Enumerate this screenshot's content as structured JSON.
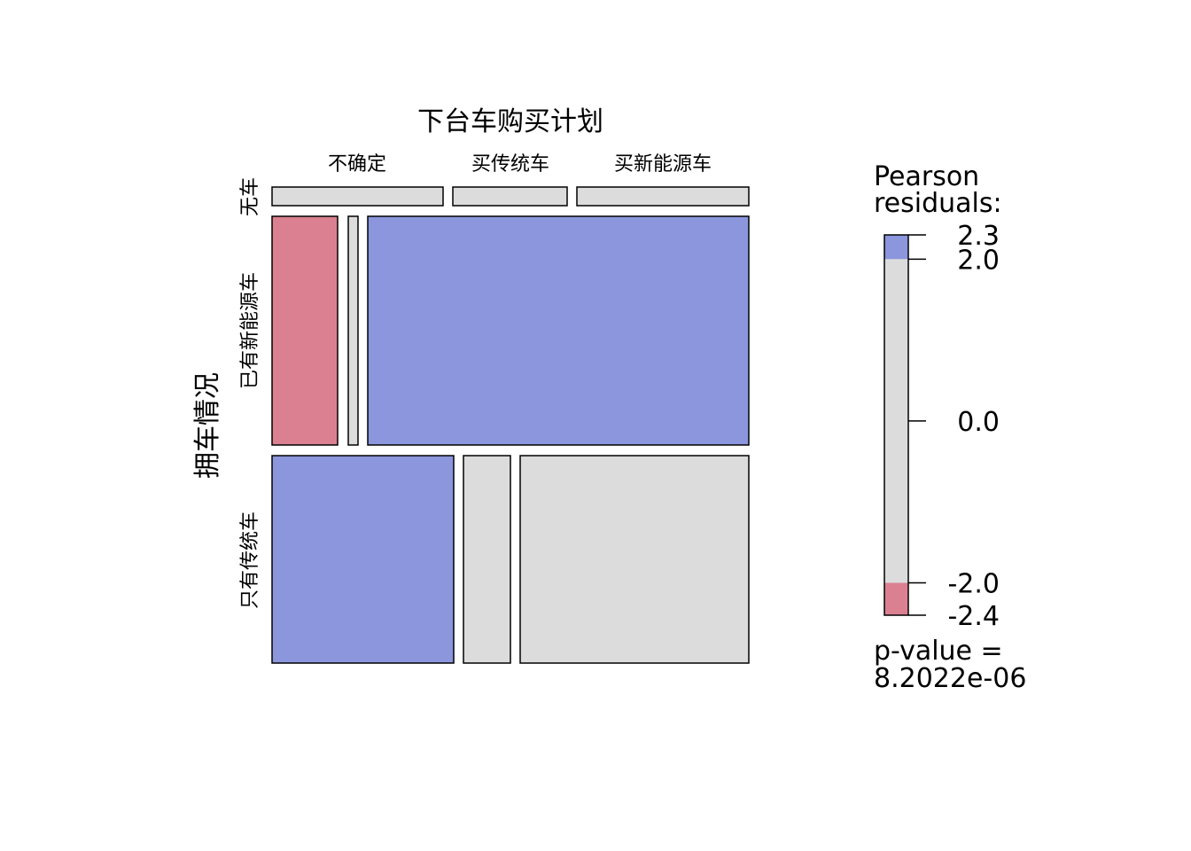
{
  "chart_data": {
    "type": "mosaic",
    "xlabel": "下台车购买计划",
    "ylabel": "拥车情况",
    "columns": [
      "不确定",
      "买传统车",
      "买新能源车"
    ],
    "rows": [
      "无车",
      "已有新能源车",
      "只有传统车"
    ],
    "row_proportions": [
      0.04,
      0.48,
      0.48
    ],
    "cells": [
      {
        "row": "无车",
        "proportions": [
          0.36,
          0.24,
          0.4
        ],
        "shade": "neutral"
      },
      {
        "row": "已有新能源车",
        "proportions": [
          0.14,
          0.02,
          0.84
        ],
        "shade": [
          "negative",
          "neutral",
          "positive"
        ]
      },
      {
        "row": "只有传统车",
        "proportions": [
          0.39,
          0.1,
          0.51
        ],
        "shade": [
          "positive",
          "neutral",
          "neutral"
        ]
      }
    ],
    "legend": {
      "title_line1": "Pearson",
      "title_line2": "residuals:",
      "range": [
        -2.4,
        2.3
      ],
      "ticks": [
        {
          "value": 2.3,
          "label": "2.3"
        },
        {
          "value": 2.0,
          "label": "2.0"
        },
        {
          "value": 0.0,
          "label": "0.0"
        },
        {
          "value": -2.0,
          "label": "-2.0"
        },
        {
          "value": -2.4,
          "label": "-2.4"
        }
      ],
      "pvalue_line1": "p-value =",
      "pvalue_line2": "8.2022e-06"
    },
    "colors": {
      "positive": "#8b96dc",
      "negative": "#db8090",
      "neutral": "#dcdcdc",
      "border": "#000000"
    }
  }
}
